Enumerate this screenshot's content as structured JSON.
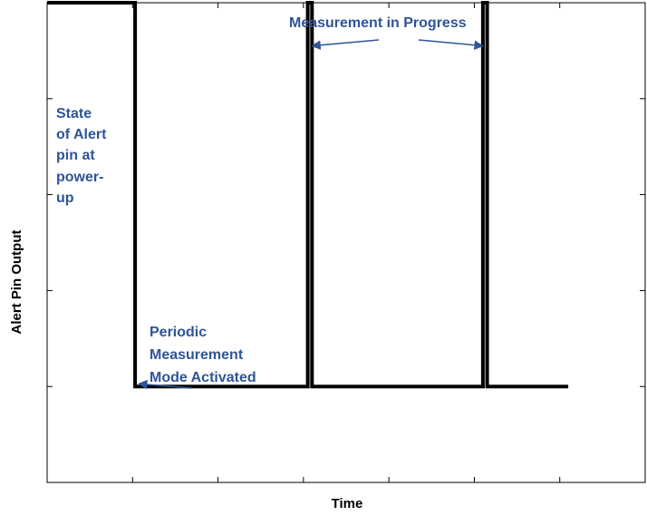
{
  "colors": {
    "signal": "#000000",
    "annotation": "#2e5597",
    "axis": "#000000"
  },
  "chart_data": {
    "type": "line",
    "title": "",
    "xlabel": "Time",
    "ylabel": "Alert Pin Output",
    "xlim": [
      0,
      7
    ],
    "ylim": [
      0,
      5
    ],
    "x_ticks": [
      1,
      2,
      3,
      4,
      5,
      6,
      7
    ],
    "y_ticks": [
      1,
      2,
      3,
      4,
      5
    ],
    "tick_labels_shown": false,
    "grid": false,
    "series": [
      {
        "points": [
          [
            0,
            5
          ],
          [
            1.03,
            5
          ],
          [
            1.03,
            1
          ],
          [
            3.05,
            1
          ],
          [
            3.05,
            5
          ],
          [
            3.1,
            5
          ],
          [
            3.1,
            1
          ],
          [
            5.1,
            1
          ],
          [
            5.1,
            5
          ],
          [
            5.15,
            5
          ],
          [
            5.15,
            1
          ],
          [
            6.1,
            1
          ]
        ]
      }
    ],
    "annotations": [
      {
        "id": "measurement",
        "lines": [
          "Measurement in Progress"
        ],
        "arrows_to": [
          [
            3.1,
            4.55
          ],
          [
            5.1,
            4.55
          ]
        ]
      },
      {
        "id": "power-up",
        "lines": [
          "State",
          "of Alert",
          "pin at",
          "power-",
          "up"
        ],
        "arrows_to": []
      },
      {
        "id": "periodic",
        "lines": [
          "Periodic",
          "Measurement",
          "Mode Activated"
        ],
        "arrows_to": [
          [
            1.03,
            1.0
          ]
        ]
      }
    ]
  }
}
